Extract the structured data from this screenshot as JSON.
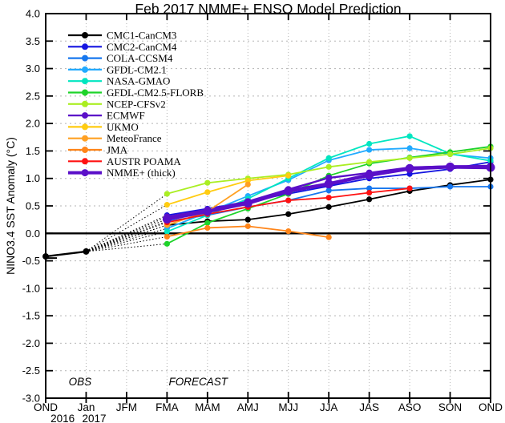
{
  "title": "Feb 2017 NMME+ ENSO Model Prediction",
  "axes": {
    "ylabel": "NINO3.4 SST Anomaly (°C)",
    "x_categories": [
      "OND",
      "Jan",
      "JFM",
      "FMA",
      "MAM",
      "AMJ",
      "MJJ",
      "JJA",
      "JAS",
      "ASO",
      "SON",
      "OND"
    ],
    "year_labels": [
      {
        "text": "2016",
        "x_index": 0.42
      },
      {
        "text": "2017",
        "x_index": 1.2
      }
    ],
    "ylim": [
      -3.0,
      4.0
    ],
    "ytick_step": 0.5
  },
  "chart_data": {
    "type": "line",
    "title": "Feb 2017 NMME+ ENSO Model Prediction",
    "xlabel": "",
    "ylabel": "NINO3.4 SST Anomaly (°C)",
    "categories": [
      "OND",
      "Jan",
      "JFM",
      "FMA",
      "MAM",
      "AMJ",
      "MJJ",
      "JJA",
      "JAS",
      "ASO",
      "SON",
      "OND"
    ],
    "year_labels": [
      {
        "text": "2016",
        "x_index": 0.42
      },
      {
        "text": "2017",
        "x_index": 1.2
      }
    ],
    "ylim": [
      -3.0,
      4.0
    ],
    "ytick_step": 0.5,
    "grid": true,
    "legend_position": "upper-left",
    "zero_line": true,
    "annotations": [
      {
        "text": "OBS",
        "x_index": 0.85,
        "value": -2.77
      },
      {
        "text": "FORECAST",
        "x_index": 3.77,
        "value": -2.77
      }
    ],
    "obs": {
      "name": "OBS",
      "color": "#000000",
      "x_indices": [
        0,
        1
      ],
      "values": [
        -0.42,
        -0.33
      ],
      "edge_stub_value": -0.45
    },
    "forecast_start_index": 3,
    "fan_lines_from_obs": true,
    "series": [
      {
        "name": "CMC1-CanCM3",
        "color": "#000000",
        "values": [
          0.15,
          0.22,
          0.25,
          0.35,
          0.48,
          0.62,
          0.77,
          0.88,
          0.98
        ]
      },
      {
        "name": "CMC2-CanCM4",
        "color": "#1515e0",
        "values": [
          0.33,
          0.45,
          0.58,
          0.72,
          0.86,
          1.0,
          1.08,
          1.17,
          1.3
        ]
      },
      {
        "name": "COLA-CCSM4",
        "color": "#1777ee",
        "values": [
          0.22,
          0.33,
          0.48,
          0.6,
          0.78,
          0.82,
          0.82,
          0.85,
          0.85
        ]
      },
      {
        "name": "GFDL-CM2.1",
        "color": "#22aaff",
        "values": [
          0.09,
          0.38,
          0.68,
          0.97,
          1.33,
          1.52,
          1.55,
          1.44,
          1.37
        ]
      },
      {
        "name": "NASA-GMAO",
        "color": "#00e6c0",
        "values": [
          0.03,
          0.33,
          0.63,
          1.0,
          1.37,
          1.63,
          1.77,
          1.45,
          1.32
        ]
      },
      {
        "name": "GFDL-CM2.5-FLORB",
        "color": "#1ed32a",
        "values": [
          -0.19,
          0.19,
          0.45,
          0.72,
          1.05,
          1.27,
          1.38,
          1.48,
          1.58
        ]
      },
      {
        "name": "NCEP-CFSv2",
        "color": "#aaee22",
        "values": [
          0.72,
          0.92,
          1.0,
          1.07,
          1.21,
          1.3,
          1.37,
          1.44,
          1.55
        ]
      },
      {
        "name": "ECMWF",
        "color": "#5a0fc8",
        "values": [
          0.3,
          0.43,
          0.58,
          0.8,
          1.01,
          1.1,
          1.2,
          1.22,
          1.23
        ],
        "width": "medium"
      },
      {
        "name": "UKMO",
        "color": "#ffcc11",
        "values": [
          0.52,
          0.75,
          0.96,
          1.05
        ]
      },
      {
        "name": "MeteoFrance",
        "color": "#ffa022",
        "values": [
          0.15,
          0.4,
          0.89
        ]
      },
      {
        "name": "JMA",
        "color": "#ff8519",
        "values": [
          -0.06,
          0.1,
          0.13,
          0.04,
          -0.07
        ]
      },
      {
        "name": "AUSTR POAMA",
        "color": "#ff1111",
        "values": [
          0.2,
          0.35,
          0.48,
          0.6,
          0.65,
          0.74,
          0.82
        ]
      },
      {
        "name": "NMME+ (thick)",
        "color": "#5a0fc8",
        "values": [
          0.26,
          0.4,
          0.55,
          0.77,
          0.9,
          1.06,
          1.18,
          1.21,
          1.2
        ],
        "width": "thick"
      }
    ]
  }
}
